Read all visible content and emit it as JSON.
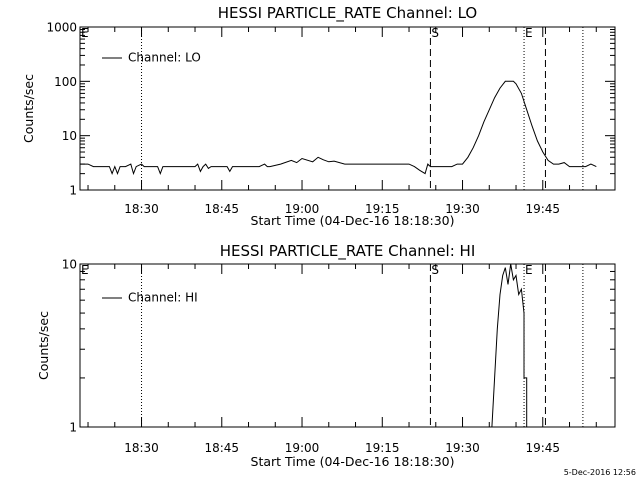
{
  "chart_data": [
    {
      "type": "line",
      "title": "HESSI PARTICLE_RATE Channel: LO",
      "xlabel": "Start Time (04-Dec-16 18:18:30)",
      "ylabel": "Counts/sec",
      "yscale": "log",
      "ylim": [
        1,
        1000
      ],
      "yticks": [
        "1",
        "10",
        "100",
        "1000"
      ],
      "xlim": [
        "18:18:30",
        "19:58:30"
      ],
      "xticks": [
        "18:30",
        "18:45",
        "19:00",
        "19:15",
        "19:30",
        "19:45"
      ],
      "legend": {
        "position": "top-left"
      },
      "series": [
        {
          "name": "Channel: LO",
          "x": [
            "18:18:30",
            "18:20:00",
            "18:21:00",
            "18:24:00",
            "18:24:30",
            "18:25:00",
            "18:25:30",
            "18:26:00",
            "18:27:00",
            "18:28:00",
            "18:28:30",
            "18:29:00",
            "18:30:00",
            "18:30:30",
            "18:31:00",
            "18:33:00",
            "18:33:30",
            "18:34:00",
            "18:35:00",
            "18:40:00",
            "18:40:30",
            "18:41:00",
            "18:41:30",
            "18:42:00",
            "18:42:30",
            "18:43:00",
            "18:45:00",
            "18:46:00",
            "18:46:30",
            "18:47:00",
            "18:50:00",
            "18:52:00",
            "18:53:00",
            "18:53:30",
            "18:54:00",
            "18:56:00",
            "18:58:00",
            "18:59:00",
            "19:00:00",
            "19:02:00",
            "19:03:00",
            "19:04:00",
            "19:05:00",
            "19:06:00",
            "19:08:00",
            "19:10:00",
            "19:12:00",
            "19:14:00",
            "19:16:00",
            "19:19:00",
            "19:20:00",
            "19:21:00",
            "19:22:00",
            "19:23:00",
            "19:23:30",
            "19:24:00",
            "19:24:30",
            "19:25:00",
            "19:26:00",
            "19:28:00",
            "19:29:00",
            "19:30:00",
            "19:31:00",
            "19:32:00",
            "19:33:00",
            "19:34:00",
            "19:35:00",
            "19:36:00",
            "19:37:00",
            "19:38:00",
            "19:39:00",
            "19:39:30",
            "19:40:00",
            "19:41:00",
            "19:42:00",
            "19:43:00",
            "19:44:00",
            "19:45:00",
            "19:46:00",
            "19:47:00",
            "19:48:00",
            "19:49:00",
            "19:50:00",
            "19:52:00",
            "19:53:00",
            "19:54:00",
            "19:55:00"
          ],
          "y": [
            3,
            3,
            2.7,
            2.7,
            2,
            2.7,
            2,
            2.7,
            2.7,
            3,
            2,
            2.7,
            3,
            2.7,
            2.7,
            2.7,
            2,
            2.7,
            2.7,
            2.7,
            3,
            2.2,
            2.7,
            3,
            2.5,
            2.7,
            2.7,
            2.7,
            2.2,
            2.7,
            2.7,
            2.7,
            3,
            2.7,
            2.7,
            3,
            3.5,
            3.2,
            3.8,
            3.3,
            4,
            3.6,
            3.3,
            3.4,
            3,
            3,
            3,
            3,
            3,
            3,
            3,
            2.7,
            2.3,
            2,
            3,
            2.7,
            2.7,
            2.7,
            2.7,
            2.7,
            3,
            3,
            4,
            6,
            10,
            18,
            30,
            50,
            75,
            100,
            100,
            100,
            90,
            60,
            30,
            15,
            8,
            5,
            3.5,
            3,
            3,
            3.2,
            2.7,
            2.7,
            2.7,
            3,
            2.7
          ]
        }
      ],
      "markers": [
        {
          "label": "E",
          "time": "18:18:30",
          "style": "dotted"
        },
        {
          "label": "",
          "time": "18:30:00",
          "style": "dotted"
        },
        {
          "label": "S",
          "time": "19:24:00",
          "style": "dashed"
        },
        {
          "label": "E",
          "time": "19:41:30",
          "style": "dotted"
        },
        {
          "label": "",
          "time": "19:45:30",
          "style": "dashed"
        },
        {
          "label": "",
          "time": "19:52:30",
          "style": "dotted"
        }
      ]
    },
    {
      "type": "line",
      "title": "HESSI PARTICLE_RATE Channel: HI",
      "xlabel": "Start Time (04-Dec-16 18:18:30)",
      "ylabel": "Counts/sec",
      "yscale": "log",
      "ylim": [
        1,
        10
      ],
      "yticks": [
        "1",
        "10"
      ],
      "xlim": [
        "18:18:30",
        "19:58:30"
      ],
      "xticks": [
        "18:30",
        "18:45",
        "19:00",
        "19:15",
        "19:30",
        "19:45"
      ],
      "legend": {
        "position": "top-left"
      },
      "series": [
        {
          "name": "Channel: HI",
          "x": [
            "19:35:30",
            "19:36:00",
            "19:36:30",
            "19:37:00",
            "19:37:30",
            "19:38:00",
            "19:38:30",
            "19:39:00",
            "19:39:30",
            "19:40:00",
            "19:40:30",
            "19:41:00",
            "19:41:30",
            "19:41:30",
            "19:42:00",
            "19:42:00"
          ],
          "y": [
            1,
            2,
            4,
            6.5,
            8.5,
            9.5,
            7.5,
            10,
            8,
            8.5,
            6.5,
            7,
            5,
            2,
            2,
            1
          ]
        }
      ],
      "markers": [
        {
          "label": "E",
          "time": "18:18:30",
          "style": "dotted"
        },
        {
          "label": "",
          "time": "18:30:00",
          "style": "dotted"
        },
        {
          "label": "S",
          "time": "19:24:00",
          "style": "dashed"
        },
        {
          "label": "E",
          "time": "19:41:30",
          "style": "dotted"
        },
        {
          "label": "",
          "time": "19:45:30",
          "style": "dashed"
        },
        {
          "label": "",
          "time": "19:52:30",
          "style": "dotted"
        }
      ]
    }
  ],
  "footer": {
    "date": "5-Dec-2016 12:56"
  }
}
